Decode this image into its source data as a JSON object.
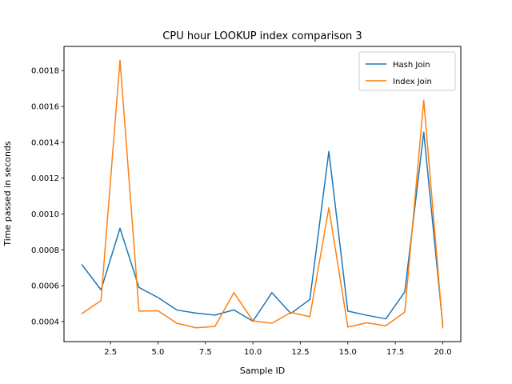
{
  "chart_data": {
    "type": "line",
    "title": "CPU hour LOOKUP index comparison 3",
    "xlabel": "Sample ID",
    "ylabel": "Time passed in seconds",
    "xlim": [
      0.05,
      20.95
    ],
    "ylim": [
      0.000288,
      0.001935
    ],
    "xticks": [
      2.5,
      5.0,
      7.5,
      10.0,
      12.5,
      15.0,
      17.5,
      20.0
    ],
    "xtick_labels": [
      "2.5",
      "5.0",
      "7.5",
      "10.0",
      "12.5",
      "15.0",
      "17.5",
      "20.0"
    ],
    "yticks": [
      0.0004,
      0.0006,
      0.0008,
      0.001,
      0.0012,
      0.0014,
      0.0016,
      0.0018
    ],
    "ytick_labels": [
      "0.0004",
      "0.0006",
      "0.0008",
      "0.0010",
      "0.0012",
      "0.0014",
      "0.0016",
      "0.0018"
    ],
    "grid": false,
    "legend_position": "top-right",
    "x": [
      1,
      2,
      3,
      4,
      5,
      6,
      7,
      8,
      9,
      10,
      11,
      12,
      13,
      14,
      15,
      16,
      17,
      18,
      19,
      20
    ],
    "series": [
      {
        "name": "Hash Join",
        "color": "#1f77b4",
        "values": [
          0.000716,
          0.000577,
          0.00092,
          0.00059,
          0.000534,
          0.000464,
          0.000447,
          0.000436,
          0.000465,
          0.000402,
          0.000561,
          0.000445,
          0.000523,
          0.001349,
          0.000458,
          0.000435,
          0.000415,
          0.000565,
          0.001457,
          0.00038
        ]
      },
      {
        "name": "Index Join",
        "color": "#ff7f0e",
        "values": [
          0.000445,
          0.000517,
          0.001857,
          0.000458,
          0.00046,
          0.00039,
          0.000365,
          0.000373,
          0.000561,
          0.000404,
          0.00039,
          0.000451,
          0.000427,
          0.001035,
          0.000369,
          0.000393,
          0.000376,
          0.000453,
          0.001635,
          0.000365
        ]
      }
    ]
  }
}
